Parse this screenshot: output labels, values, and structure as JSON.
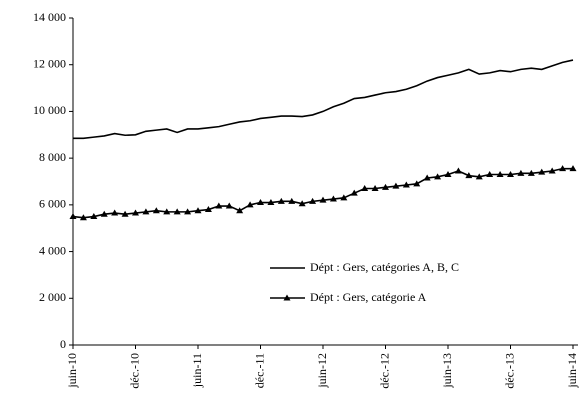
{
  "chart_data": {
    "type": "line",
    "categories": [
      "juin-10",
      null,
      null,
      null,
      null,
      null,
      "déc.-10",
      null,
      null,
      null,
      null,
      null,
      "juin-11",
      null,
      null,
      null,
      null,
      null,
      "déc.-11",
      null,
      null,
      null,
      null,
      null,
      "juin-12",
      null,
      null,
      null,
      null,
      null,
      "déc.-12",
      null,
      null,
      null,
      null,
      null,
      "juin-13",
      null,
      null,
      null,
      null,
      null,
      "déc.-13",
      null,
      null,
      null,
      null,
      null,
      "juin-14"
    ],
    "series": [
      {
        "name": "Dépt : Gers, catégories A, B, C",
        "color": "#000000",
        "marker": false,
        "values": [
          8850,
          8850,
          8900,
          8950,
          9050,
          8980,
          9000,
          9150,
          9200,
          9250,
          9100,
          9250,
          9250,
          9300,
          9350,
          9450,
          9550,
          9600,
          9700,
          9750,
          9800,
          9800,
          9780,
          9850,
          10000,
          10200,
          10350,
          10550,
          10600,
          10700,
          10800,
          10850,
          10950,
          11100,
          11300,
          11450,
          11550,
          11650,
          11800,
          11600,
          11650,
          11750,
          11700,
          11800,
          11850,
          11800,
          11950,
          12100,
          12200
        ]
      },
      {
        "name": "Dépt : Gers, catégorie A",
        "color": "#000000",
        "marker": true,
        "values": [
          5500,
          5450,
          5500,
          5600,
          5650,
          5600,
          5650,
          5700,
          5750,
          5700,
          5700,
          5700,
          5750,
          5800,
          5950,
          5950,
          5750,
          6000,
          6100,
          6100,
          6150,
          6150,
          6050,
          6150,
          6200,
          6250,
          6300,
          6500,
          6700,
          6700,
          6750,
          6800,
          6850,
          6900,
          7150,
          7200,
          7300,
          7450,
          7250,
          7200,
          7300,
          7300,
          7300,
          7350,
          7350,
          7400,
          7450,
          7550,
          7550
        ]
      }
    ],
    "ylim": [
      0,
      14000
    ],
    "yticks": [
      0,
      {
        "value": 2000,
        "label": "2 000"
      },
      {
        "value": 4000,
        "label": "4 000"
      },
      {
        "value": 6000,
        "label": "6 000"
      },
      {
        "value": 8000,
        "label": "8 000"
      },
      {
        "value": 10000,
        "label": "10 000"
      },
      {
        "value": 12000,
        "label": "12 000"
      },
      {
        "value": 14000,
        "label": "14 000"
      }
    ],
    "grid": false
  }
}
